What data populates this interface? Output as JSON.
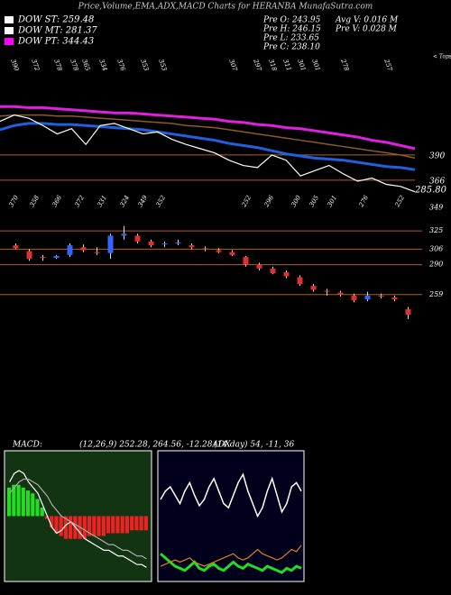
{
  "header": {
    "title": "Price,Volume,EMA,ADX,MACD Charts for HERANBA MunafaSutra.com",
    "legend": [
      {
        "text": "DOW ST: 259.48",
        "color": "#ffffff"
      },
      {
        "text": "DOW MT: 281.37",
        "color": "#ffffff"
      },
      {
        "text": "DOW PT: 344.43",
        "color": "#ff00ff"
      }
    ],
    "info_left": [
      "Pre  O: 243.95",
      "Pre  H: 246.15",
      "Pre  L: 233.65",
      "Pre  C: 238.10"
    ],
    "info_right": [
      "Avg V: 0.016  M",
      "Pre  V: 0.028  M"
    ]
  },
  "chart_data": [
    {
      "type": "line",
      "ylim": [
        353,
        486
      ],
      "yticks": [
        390,
        366
      ],
      "annotation": "285.80",
      "tops_note": "< Tops",
      "top_labels": [
        "390",
        "372",
        "378",
        "378",
        "365",
        "334",
        "376",
        "353",
        "353",
        "307",
        "297",
        "318",
        "311",
        "301",
        "301",
        "278",
        "257"
      ],
      "series": [
        {
          "color": "#e020e0",
          "width": 3,
          "values": [
            436,
            436,
            435,
            435,
            434,
            433,
            432,
            431,
            430,
            430,
            429,
            428,
            427,
            426,
            425,
            424,
            422,
            421,
            419,
            418,
            416,
            415,
            413,
            411,
            409,
            407,
            404,
            402,
            399,
            396
          ]
        },
        {
          "color": "#8b5a2b",
          "width": 1.5,
          "values": [
            427,
            428,
            428,
            428,
            427,
            427,
            426,
            425,
            424,
            423,
            422,
            421,
            420,
            418,
            417,
            416,
            414,
            412,
            410,
            408,
            406,
            404,
            402,
            400,
            398,
            396,
            394,
            392,
            390,
            387
          ]
        },
        {
          "color": "#2060e0",
          "width": 3,
          "values": [
            414,
            418,
            420,
            420,
            419,
            419,
            418,
            417,
            416,
            415,
            414,
            412,
            410,
            408,
            406,
            404,
            401,
            399,
            397,
            394,
            391,
            389,
            387,
            386,
            385,
            383,
            381,
            379,
            378,
            376
          ]
        },
        {
          "color": "#ffffff",
          "width": 1.2,
          "values": [
            422,
            428,
            425,
            418,
            410,
            415,
            400,
            418,
            420,
            415,
            410,
            412,
            405,
            400,
            396,
            392,
            385,
            380,
            378,
            390,
            385,
            370,
            375,
            380,
            372,
            365,
            368,
            362,
            360,
            355
          ]
        }
      ]
    },
    {
      "type": "candlestick",
      "ylim": [
        228,
        354
      ],
      "yticks": [
        349,
        325,
        306,
        290,
        259
      ],
      "bottom_labels": [
        "370",
        "358",
        "366",
        "372",
        "331",
        "324",
        "349",
        "352",
        "252",
        "296",
        "300",
        "305",
        "301",
        "276",
        "252"
      ],
      "open": [
        310,
        304,
        298,
        297,
        300,
        308,
        303,
        302,
        320,
        320,
        314,
        311,
        312,
        310,
        307,
        305,
        303,
        298,
        290,
        286,
        282,
        277,
        268,
        263,
        261,
        258,
        254,
        258,
        256,
        243.95
      ],
      "high": [
        312,
        306,
        300,
        300,
        312,
        311,
        308,
        322,
        330,
        322,
        316,
        314,
        316,
        312,
        309,
        307,
        305,
        299,
        292,
        288,
        284,
        279,
        270,
        265,
        263,
        260,
        262,
        260,
        258,
        246.15
      ],
      "low": [
        306,
        294,
        294,
        296,
        298,
        303,
        300,
        296,
        316,
        312,
        308,
        308,
        310,
        306,
        304,
        302,
        299,
        288,
        284,
        280,
        276,
        268,
        262,
        258,
        257,
        251,
        252,
        255,
        252,
        233.65
      ],
      "close": [
        307,
        296,
        297,
        299,
        310,
        305,
        302,
        320,
        322,
        314,
        310,
        312,
        313,
        308,
        306,
        303,
        300,
        290,
        286,
        281,
        278,
        270,
        264,
        262,
        259,
        253,
        258,
        257,
        254,
        238.1
      ]
    },
    {
      "type": "macd",
      "title": "MACD:",
      "subtitle": "(12,26,9) 252.28, 264.56, -12.28ADX",
      "ylim": [
        -22,
        22
      ],
      "histogram": [
        10,
        11,
        11,
        10,
        9,
        8,
        6,
        3,
        -1,
        -4,
        -6,
        -7,
        -8,
        -8,
        -8,
        -8,
        -8,
        -7,
        -7,
        -7,
        -7,
        -6,
        -6,
        -6,
        -6,
        -6,
        -5,
        -5,
        -5,
        -5
      ],
      "series": [
        {
          "color": "#ffffff",
          "values": [
            12,
            15,
            16,
            15,
            12,
            10,
            8,
            4,
            0,
            -4,
            -6,
            -5,
            -3,
            -2,
            -4,
            -6,
            -8,
            -9,
            -10,
            -11,
            -12,
            -12,
            -13,
            -14,
            -14,
            -15,
            -16,
            -17,
            -17,
            -18
          ]
        },
        {
          "color": "#aaaaaa",
          "values": [
            8,
            10,
            12,
            13,
            13,
            12,
            11,
            9,
            7,
            4,
            2,
            0,
            -1,
            -2,
            -3,
            -4,
            -5,
            -6,
            -7,
            -8,
            -9,
            -10,
            -10,
            -11,
            -12,
            -12,
            -13,
            -14,
            -14,
            -15
          ]
        }
      ]
    },
    {
      "type": "line",
      "title": "(14  day) 54, -11, 36",
      "ylim": [
        0,
        60
      ],
      "series": [
        {
          "color": "#ffffff",
          "width": 1.5,
          "values": [
            38,
            42,
            44,
            40,
            36,
            42,
            46,
            40,
            35,
            38,
            44,
            48,
            42,
            36,
            34,
            40,
            46,
            50,
            42,
            36,
            30,
            34,
            42,
            48,
            40,
            32,
            36,
            44,
            46,
            42
          ]
        },
        {
          "color": "#22dd22",
          "width": 3,
          "values": [
            12,
            10,
            8,
            6,
            5,
            4,
            6,
            8,
            5,
            4,
            6,
            7,
            5,
            4,
            6,
            8,
            6,
            5,
            7,
            6,
            5,
            4,
            6,
            5,
            4,
            3,
            5,
            4,
            6,
            5
          ]
        },
        {
          "color": "#e08020",
          "width": 1.2,
          "values": [
            6,
            7,
            8,
            9,
            8,
            9,
            10,
            8,
            7,
            6,
            7,
            8,
            9,
            10,
            11,
            12,
            10,
            9,
            10,
            12,
            14,
            12,
            11,
            10,
            9,
            10,
            12,
            14,
            13,
            16
          ]
        }
      ]
    }
  ]
}
